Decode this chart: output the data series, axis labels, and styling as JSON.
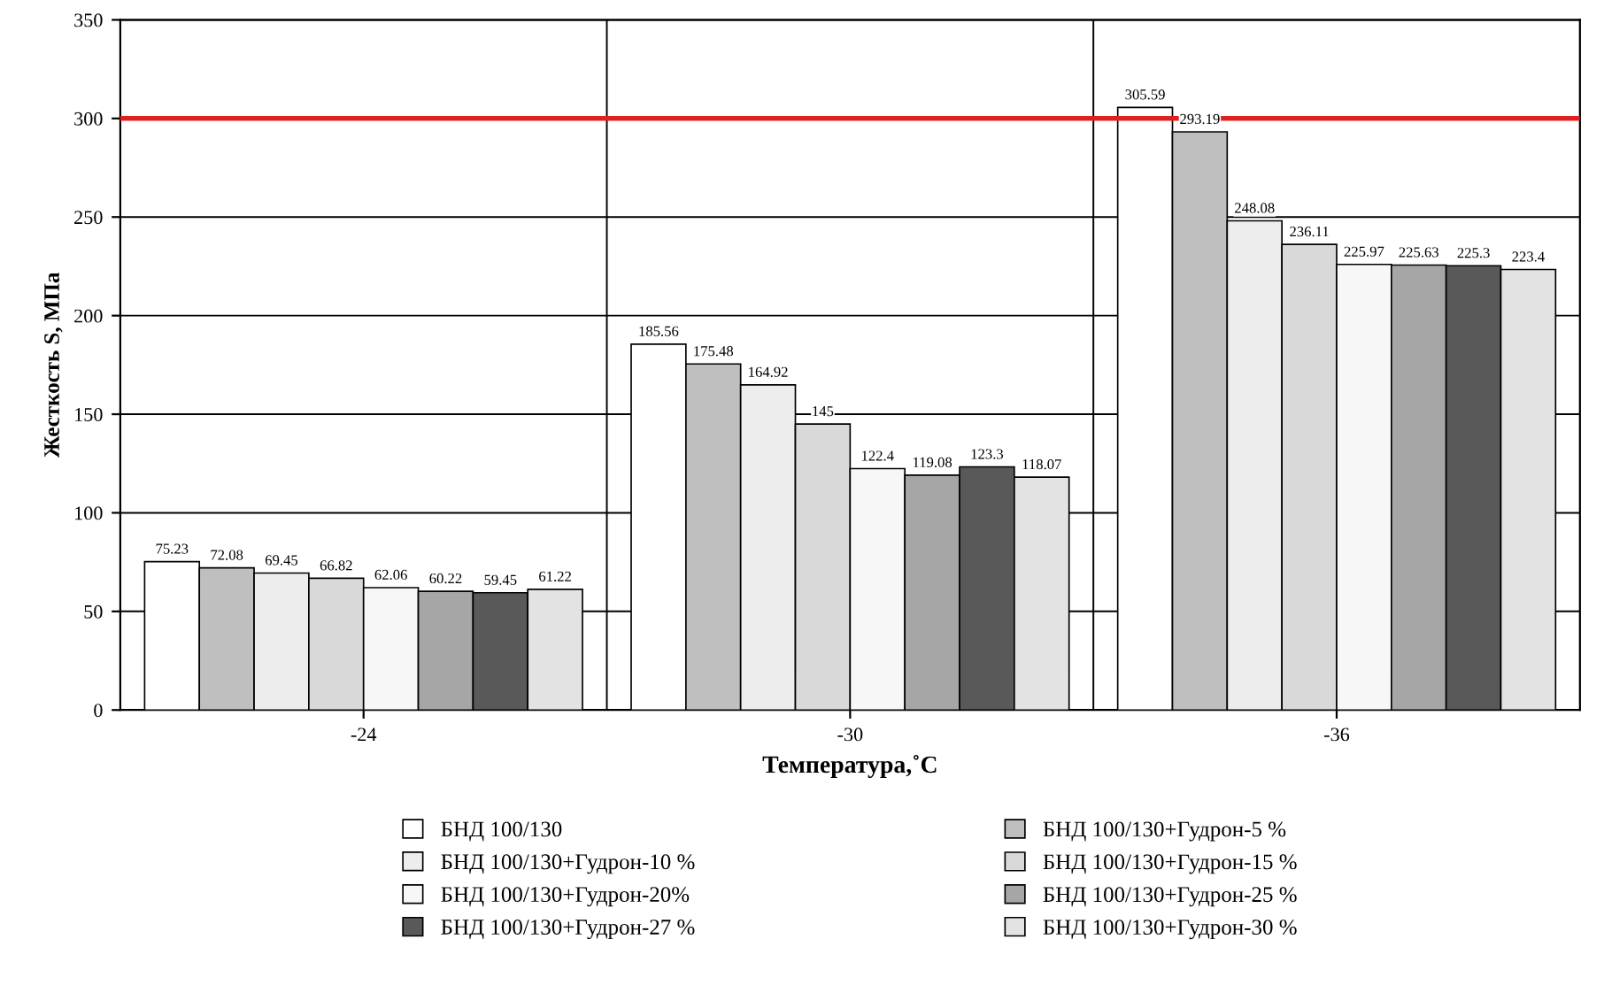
{
  "chart_data": {
    "type": "bar",
    "xlabel": "Температура,˚С",
    "ylabel": "Жесткость S, МПа",
    "categories": [
      "-24",
      "-30",
      "-36"
    ],
    "series": [
      {
        "name": "БНД 100/130",
        "color": "#ffffff",
        "values": [
          75.23,
          185.56,
          305.59
        ]
      },
      {
        "name": "БНД 100/130+Гудрон-5 %",
        "color": "#bfbfbf",
        "values": [
          72.08,
          175.48,
          293.19
        ]
      },
      {
        "name": "БНД 100/130+Гудрон-10 %",
        "color": "#ededed",
        "values": [
          69.45,
          164.92,
          248.08
        ]
      },
      {
        "name": "БНД 100/130+Гудрон-15 %",
        "color": "#d9d9d9",
        "values": [
          66.82,
          145,
          236.11
        ]
      },
      {
        "name": "БНД 100/130+Гудрон-20%",
        "color": "#f7f7f7",
        "values": [
          62.06,
          122.4,
          225.97
        ]
      },
      {
        "name": "БНД 100/130+Гудрон-25 %",
        "color": "#a6a6a6",
        "values": [
          60.22,
          119.08,
          225.63
        ]
      },
      {
        "name": "БНД 100/130+Гудрон-27 %",
        "color": "#595959",
        "values": [
          59.45,
          123.3,
          225.3
        ]
      },
      {
        "name": "БНД 100/130+Гудрон-30 %",
        "color": "#e3e3e3",
        "values": [
          61.22,
          118.07,
          223.4
        ]
      }
    ],
    "ylim": [
      0,
      350
    ],
    "yticks": [
      0,
      50,
      100,
      150,
      200,
      250,
      300,
      350
    ],
    "grid": "y",
    "legend": "bottom",
    "data_labels": true,
    "ref_lines": [
      {
        "axis": "y",
        "value": 300,
        "label": null,
        "color": "#e02020"
      }
    ]
  }
}
